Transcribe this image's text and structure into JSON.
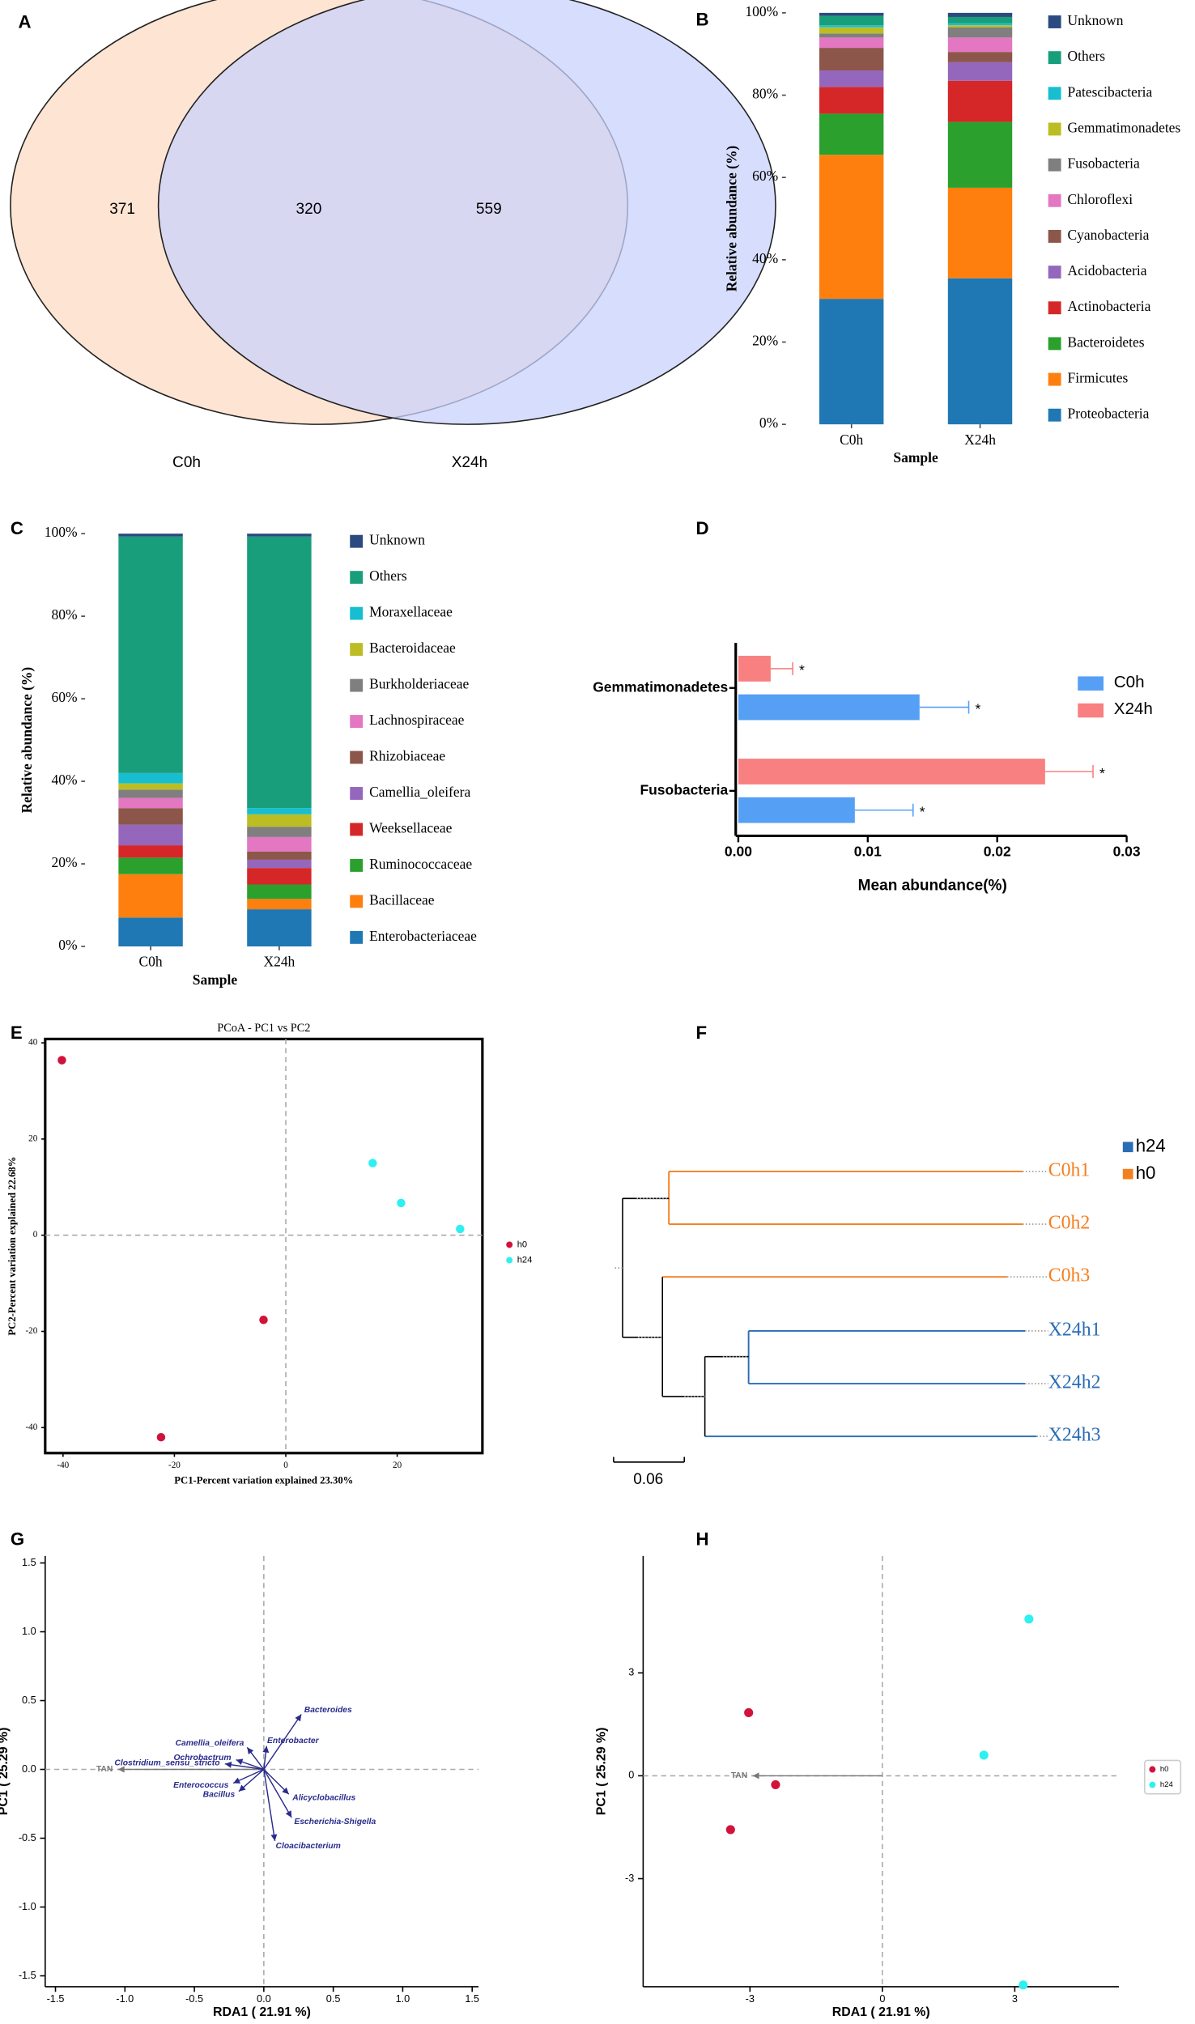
{
  "chart_data": [
    {
      "panel": "A",
      "type": "venn",
      "sets": [
        {
          "name": "C0h",
          "color": "#fddcc4"
        },
        {
          "name": "X24h",
          "color": "#c9d1fb"
        }
      ],
      "values": [
        371,
        320,
        559
      ]
    },
    {
      "panel": "B",
      "type": "stacked_bar",
      "categories": [
        "C0h",
        "X24h"
      ],
      "xlabel": "Sample",
      "ylabel": "Relative abundance (%)",
      "ylim": [
        0,
        100
      ],
      "yticks": [
        {
          "value": 0,
          "label": "0%"
        },
        {
          "value": 20,
          "label": "20%"
        },
        {
          "value": 40,
          "label": "40%"
        },
        {
          "value": 60,
          "label": "60%"
        },
        {
          "value": 80,
          "label": "80%"
        },
        {
          "value": 100,
          "label": "100%"
        }
      ],
      "series": [
        {
          "name": "Proteobacteria",
          "color": "#1f77b4",
          "values": [
            30.5,
            35.5
          ]
        },
        {
          "name": "Firmicutes",
          "color": "#ff7f0e",
          "values": [
            35,
            22
          ]
        },
        {
          "name": "Bacteroidetes",
          "color": "#2ca02c",
          "values": [
            10,
            16
          ]
        },
        {
          "name": "Actinobacteria",
          "color": "#d62728",
          "values": [
            6.5,
            10
          ]
        },
        {
          "name": "Acidobacteria",
          "color": "#9467bd",
          "values": [
            4,
            4.5
          ]
        },
        {
          "name": "Cyanobacteria",
          "color": "#8c564b",
          "values": [
            5.5,
            2.5
          ]
        },
        {
          "name": "Chloroflexi",
          "color": "#e377c2",
          "values": [
            2.5,
            3.5
          ]
        },
        {
          "name": "Fusobacteria",
          "color": "#7f7f7f",
          "values": [
            1,
            2.5
          ]
        },
        {
          "name": "Gemmatimonadetes",
          "color": "#bcbd22",
          "values": [
            1.5,
            0.5
          ]
        },
        {
          "name": "Patescibacteria",
          "color": "#17becf",
          "values": [
            0.5,
            0.5
          ]
        },
        {
          "name": "Others",
          "color": "#199e7c",
          "values": [
            2.3,
            1.5
          ]
        },
        {
          "name": "Unknown",
          "color": "#2b4a7f",
          "values": [
            0.7,
            1
          ]
        }
      ]
    },
    {
      "panel": "C",
      "type": "stacked_bar",
      "categories": [
        "C0h",
        "X24h"
      ],
      "xlabel": "Sample",
      "ylabel": "Relative abundance (%)",
      "ylim": [
        0,
        100
      ],
      "yticks": [
        {
          "value": 0,
          "label": "0%"
        },
        {
          "value": 20,
          "label": "20%"
        },
        {
          "value": 40,
          "label": "40%"
        },
        {
          "value": 60,
          "label": "60%"
        },
        {
          "value": 80,
          "label": "80%"
        },
        {
          "value": 100,
          "label": "100%"
        }
      ],
      "series": [
        {
          "name": "Enterobacteriaceae",
          "color": "#1f77b4",
          "values": [
            7,
            9
          ]
        },
        {
          "name": "Bacillaceae",
          "color": "#ff7f0e",
          "values": [
            10.5,
            2.5
          ]
        },
        {
          "name": "Ruminococcaceae",
          "color": "#2ca02c",
          "values": [
            4,
            3.5
          ]
        },
        {
          "name": "Weeksellaceae",
          "color": "#d62728",
          "values": [
            3,
            4
          ]
        },
        {
          "name": "Camellia_oleifera",
          "color": "#9467bd",
          "values": [
            5,
            2
          ]
        },
        {
          "name": "Rhizobiaceae",
          "color": "#8c564b",
          "values": [
            4,
            2
          ]
        },
        {
          "name": "Lachnospiraceae",
          "color": "#e377c2",
          "values": [
            2.5,
            3.5
          ]
        },
        {
          "name": "Burkholderiaceae",
          "color": "#7f7f7f",
          "values": [
            2,
            2.5
          ]
        },
        {
          "name": "Bacteroidaceae",
          "color": "#bcbd22",
          "values": [
            1.5,
            3
          ]
        },
        {
          "name": "Moraxellaceae",
          "color": "#17becf",
          "values": [
            2.5,
            1.5
          ]
        },
        {
          "name": "Others",
          "color": "#199e7c",
          "values": [
            57.3,
            65.8
          ]
        },
        {
          "name": "Unknown",
          "color": "#2b4a7f",
          "values": [
            0.7,
            0.7
          ]
        }
      ]
    },
    {
      "panel": "D",
      "type": "hbar",
      "categories": [
        "Gemmatimonadetes",
        "Fusobacteria"
      ],
      "xlabel": "Mean abundance(%)",
      "xlim": [
        0,
        0.03
      ],
      "xticks": [
        {
          "value": 0,
          "label": "0.00"
        },
        0.01,
        0.02,
        0.03
      ],
      "series": [
        {
          "name": "C0h",
          "color": "#55a0f5",
          "values": [
            0.014,
            0.009
          ],
          "errors": [
            0.0038,
            0.0045
          ],
          "annotations": [
            "*",
            "*"
          ]
        },
        {
          "name": "X24h",
          "color": "#f98080",
          "values": [
            0.0025,
            0.0237
          ],
          "errors": [
            0.0017,
            0.0037
          ],
          "annotations": [
            "*",
            "*"
          ]
        }
      ]
    },
    {
      "panel": "E",
      "type": "scatter",
      "title": "PCoA - PC1 vs PC2",
      "xlabel": "PC1-Percent variation explained 23.30%",
      "ylabel": "PC2-Percent variation explained 22.68%",
      "xlim": [
        -43.2,
        35.3
      ],
      "ylim": [
        -45.3,
        40.8
      ],
      "xticks": [
        -40,
        -20,
        0,
        20
      ],
      "yticks": [
        -40,
        -20,
        0,
        20,
        40
      ],
      "series": [
        {
          "name": "h0",
          "color": "#d1133c",
          "x": [
            -40.2,
            -4,
            -22.4
          ],
          "values": [
            36.4,
            -17.6,
            -42
          ]
        },
        {
          "name": "h24",
          "color": "#2ef0f0",
          "x": [
            15.6,
            20.7,
            31.3
          ],
          "values": [
            15,
            6.7,
            1.3
          ]
        }
      ]
    },
    {
      "panel": "F",
      "type": "dendrogram",
      "groups": [
        {
          "name": "h24",
          "color": "#2a6db5"
        },
        {
          "name": "h0",
          "color": "#f47f20"
        }
      ],
      "leaves": [
        {
          "name": "C0h1",
          "color": "#f47f20"
        },
        {
          "name": "C0h2",
          "color": "#f47f20"
        },
        {
          "name": "C0h3",
          "color": "#f47f20"
        },
        {
          "name": "X24h1",
          "color": "#2a6db5"
        },
        {
          "name": "X24h2",
          "color": "#2a6db5"
        },
        {
          "name": "X24h3",
          "color": "#2a6db5"
        }
      ],
      "scale_label": "0.06"
    },
    {
      "panel": "G",
      "type": "biplot",
      "xlabel": "RDA1 ( 21.91 %)",
      "ylabel": "PC1 ( 25.29 %)",
      "xlim": [
        -1.574,
        1.546
      ],
      "ylim": [
        -1.579,
        1.551
      ],
      "xticks": [
        -1.5,
        {
          "value": -1,
          "label": "-1.0"
        },
        -0.5,
        {
          "value": 0,
          "label": "0.0"
        },
        0.5,
        {
          "value": 1,
          "label": "1.0"
        },
        1.5
      ],
      "yticks": [
        -1.5,
        {
          "value": -1,
          "label": "-1.0"
        },
        -0.5,
        {
          "value": 0,
          "label": "0.0"
        },
        0.5,
        {
          "value": 1,
          "label": "1.0"
        },
        1.5
      ],
      "arrows": [
        {
          "name": "TAN",
          "color": "#777777",
          "x": -1.05,
          "y": 0
        },
        {
          "name": "Bacteroides",
          "color": "#2a2a8c",
          "x": 0.27,
          "y": 0.4
        },
        {
          "name": "Enterobacter",
          "color": "#2a2a8c",
          "x": 0.02,
          "y": 0.17
        },
        {
          "name": "Camellia_oleifera",
          "color": "#2a2a8c",
          "x": -0.12,
          "y": 0.16
        },
        {
          "name": "Ochrobactrum",
          "color": "#2a2a8c",
          "x": -0.2,
          "y": 0.07
        },
        {
          "name": "Clostridium_sensu_stricto",
          "color": "#2a2a8c",
          "x": -0.28,
          "y": 0.04
        },
        {
          "name": "Enterococcus",
          "color": "#2a2a8c",
          "x": -0.22,
          "y": -0.1
        },
        {
          "name": "Bacillus",
          "color": "#2a2a8c",
          "x": -0.18,
          "y": -0.16
        },
        {
          "name": "Alicyclobacillus",
          "color": "#2a2a8c",
          "x": 0.18,
          "y": -0.18
        },
        {
          "name": "Escherichia-Shigella",
          "color": "#2a2a8c",
          "x": 0.2,
          "y": -0.35
        },
        {
          "name": "Cloacibacterium",
          "color": "#2a2a8c",
          "x": 0.08,
          "y": -0.52
        }
      ]
    },
    {
      "panel": "H",
      "type": "biplot",
      "xlabel": "RDA1 ( 21.91 %)",
      "ylabel": "PC1 ( 25.29 %)",
      "xlim": [
        -5.42,
        5.36
      ],
      "ylim": [
        -6.15,
        6.41
      ],
      "xticks": [
        -3,
        0,
        3
      ],
      "yticks": [
        -3,
        0,
        3
      ],
      "arrows": [
        {
          "name": "TAN",
          "color": "#777777",
          "x": -2.94,
          "y": 0
        }
      ],
      "series": [
        {
          "name": "h0",
          "color": "#d1133c",
          "x": [
            -3.03,
            -2.42,
            -3.44
          ],
          "values": [
            1.84,
            -0.26,
            -1.57
          ]
        },
        {
          "name": "h24",
          "color": "#2ef0f0",
          "x": [
            3.32,
            2.3,
            3.19
          ],
          "values": [
            4.57,
            0.6,
            -6.1
          ]
        }
      ]
    }
  ]
}
